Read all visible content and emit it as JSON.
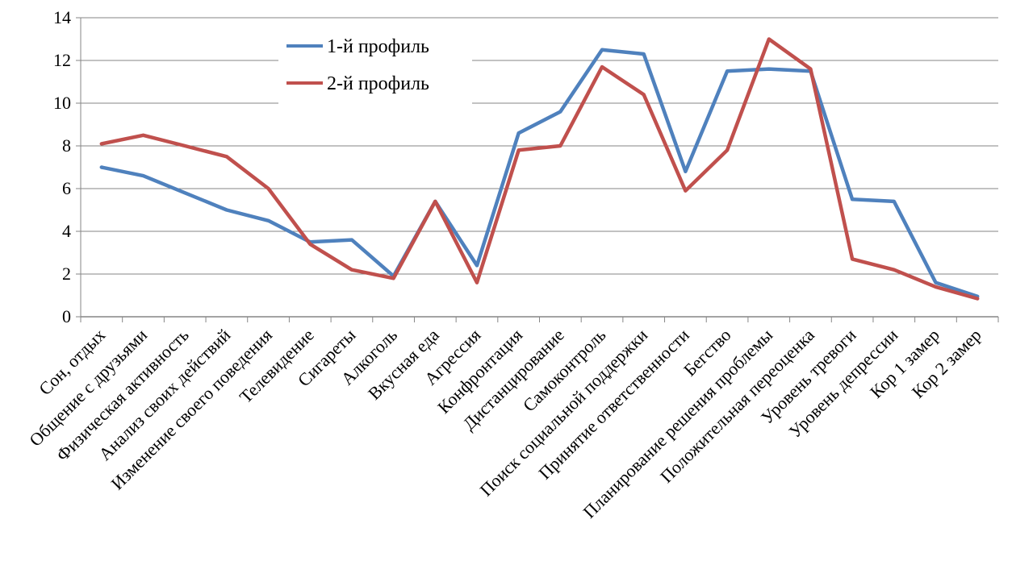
{
  "chart_data": {
    "type": "line",
    "categories": [
      "Сон, отдых",
      "Общение с друзьями",
      "Физическая активность",
      "Анализ своих действий",
      "Изменение своего поведения",
      "Телевидение",
      "Сигареты",
      "Алкоголь",
      "Вкусная еда",
      "Агрессия",
      "Конфронтация",
      "Дистанцирование",
      "Самоконтроль",
      "Поиск социальной поддержки",
      "Принятие ответственности",
      "Бегство",
      "Планирование решения проблемы",
      "Положительная переоценка",
      "Уровень тревоги",
      "Уровень депрессии",
      "Кор 1 замер",
      "Кор 2 замер"
    ],
    "series": [
      {
        "name": "1-й профиль",
        "color": "#4F81BD",
        "values": [
          7.0,
          6.6,
          5.8,
          5.0,
          4.5,
          3.5,
          3.6,
          1.9,
          5.4,
          2.4,
          8.6,
          9.6,
          12.5,
          12.3,
          6.8,
          11.5,
          11.6,
          11.5,
          5.5,
          5.4,
          1.6,
          0.95
        ]
      },
      {
        "name": "2-й профиль",
        "color": "#C0504D",
        "values": [
          8.1,
          8.5,
          8.0,
          7.5,
          6.0,
          3.4,
          2.2,
          1.8,
          5.4,
          1.6,
          7.8,
          8.0,
          11.7,
          10.4,
          5.9,
          7.8,
          13.0,
          11.6,
          2.7,
          2.2,
          1.4,
          0.85
        ]
      }
    ],
    "yticks": [
      "0",
      "2",
      "4",
      "6",
      "8",
      "10",
      "12",
      "14"
    ],
    "ylim": [
      0,
      14
    ],
    "grid": "horizontal",
    "legend_position": "top-left inside plot"
  }
}
